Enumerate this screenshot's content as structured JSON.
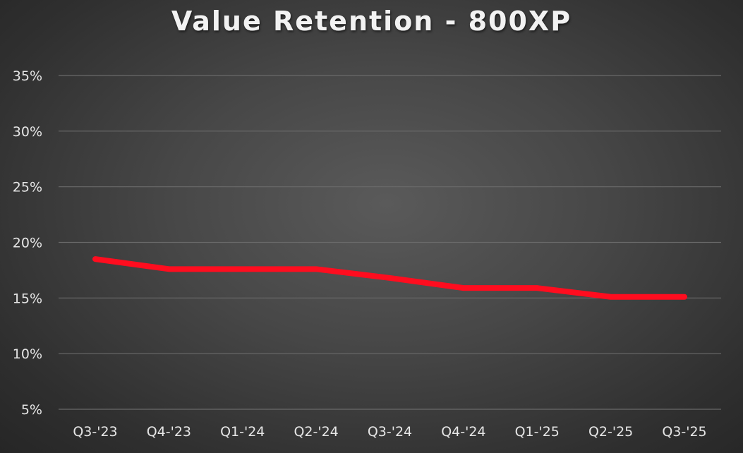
{
  "chart_data": {
    "type": "line",
    "title": "Value Retention - 800XP",
    "xlabel": "",
    "ylabel": "",
    "categories": [
      "Q3-'23",
      "Q4-'23",
      "Q1-'24",
      "Q2-'24",
      "Q3-'24",
      "Q4-'24",
      "Q1-'25",
      "Q2-'25",
      "Q3-'25"
    ],
    "series": [
      {
        "values": [
          18.5,
          17.6,
          17.6,
          17.6,
          16.8,
          15.9,
          15.9,
          15.1,
          15.1
        ],
        "color": "#ff0d1f"
      }
    ],
    "ylim": [
      5,
      35
    ],
    "yticks": [
      5,
      10,
      15,
      20,
      25,
      30,
      35
    ],
    "ytick_labels": [
      "5%",
      "10%",
      "15%",
      "20%",
      "25%",
      "30%",
      "35%"
    ],
    "grid": true,
    "legend": "none"
  }
}
